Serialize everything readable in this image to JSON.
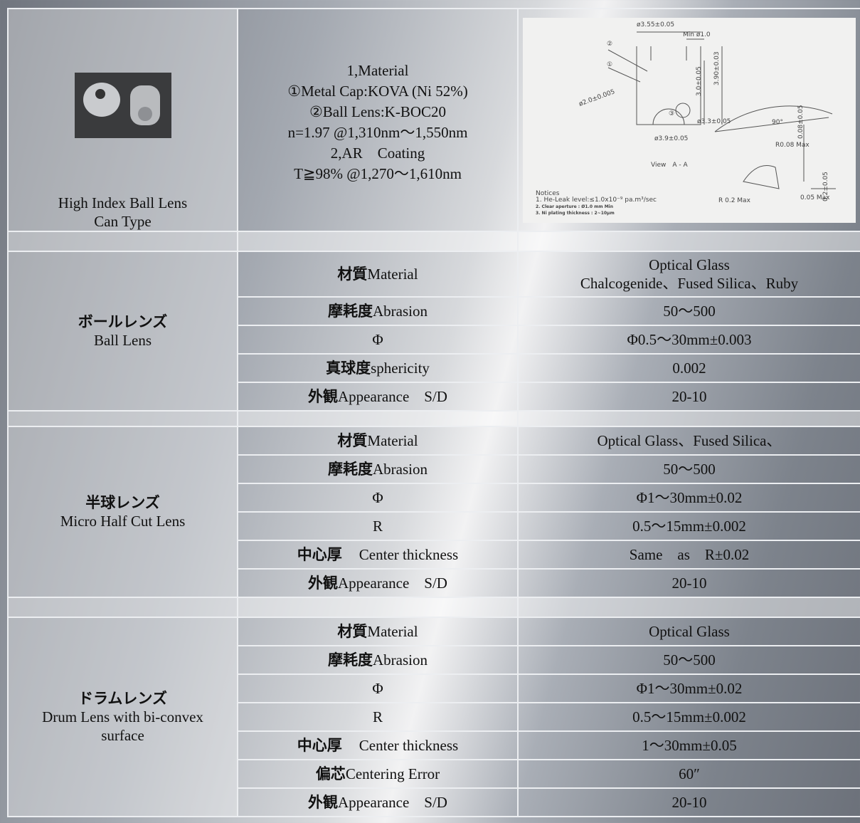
{
  "header_row": {
    "product": [
      "High Index Ball Lens",
      "Can Type"
    ],
    "spec": [
      "1,Material",
      "①Metal Cap:KOVA (Ni 52%)",
      "②Ball Lens:K-BOC20",
      "n=1.97 @1,310nm～1,550nm",
      "2,AR　Coating",
      "T≧98% @1,270～1,610nm"
    ],
    "drawing": {
      "labels": [
        "ø3.55±0.05",
        "Min ø1.0",
        "②",
        "①",
        "③",
        "ø2.0±0.005",
        "3.0±0.05",
        "3.90±0.03",
        "ø3.3±0.05",
        "ø3.9±0.05",
        "90°",
        "R0.08 Max",
        "0.08±0.05",
        "View　A - A",
        "R 0.2 Max",
        "0.05 Max",
        "0.2±0.05"
      ],
      "notices": [
        "Notices",
        "1. He-Leak level:≤1.0x10⁻⁹ pa.m³/sec",
        "2. Clear aperture : Ø1.0 mm Min",
        "3. Ni plating thickness : 2~10μm"
      ]
    }
  },
  "sections": [
    {
      "name_ja": "ボールレンズ",
      "name_en": "Ball Lens",
      "rows": [
        {
          "label_ja": "材質",
          "label_en": "Material",
          "value": [
            "Optical Glass",
            "Chalcogenide、Fused Silica、Ruby"
          ]
        },
        {
          "label_ja": "摩耗度",
          "label_en": "Abrasion",
          "value": [
            "50～500"
          ]
        },
        {
          "label_en": "Φ",
          "value": [
            "Φ0.5～30mm±0.003"
          ]
        },
        {
          "label_ja": "真球度",
          "label_en": "sphericity",
          "value": [
            "0.002"
          ]
        },
        {
          "label_ja": "外観",
          "label_en": "Appearance　S/D",
          "value": [
            "20-10"
          ]
        }
      ]
    },
    {
      "name_ja": "半球レンズ",
      "name_en": "Micro Half Cut Lens",
      "rows": [
        {
          "label_ja": "材質",
          "label_en": "Material",
          "value": [
            "Optical Glass、Fused Silica、"
          ]
        },
        {
          "label_ja": "摩耗度",
          "label_en": "Abrasion",
          "value": [
            "50～500"
          ]
        },
        {
          "label_en": "Φ",
          "value": [
            "Φ1～30mm±0.02"
          ]
        },
        {
          "label_en": "R",
          "value": [
            "0.5～15mm±0.002"
          ]
        },
        {
          "label_ja": "中心厚",
          "label_en": "Center thickness",
          "value": [
            "Same　as　R±0.02"
          ]
        },
        {
          "label_ja": "外観",
          "label_en": "Appearance　S/D",
          "value": [
            "20-10"
          ]
        }
      ]
    },
    {
      "name_ja": "ドラムレンズ",
      "name_en": "Drum Lens with bi-convex surface",
      "rows": [
        {
          "label_ja": "材質",
          "label_en": "Material",
          "value": [
            "Optical Glass"
          ]
        },
        {
          "label_ja": "摩耗度",
          "label_en": "Abrasion",
          "value": [
            "50～500"
          ]
        },
        {
          "label_en": "Φ",
          "value": [
            "Φ1～30mm±0.02"
          ]
        },
        {
          "label_en": "R",
          "value": [
            "0.5～15mm±0.002"
          ]
        },
        {
          "label_ja": "中心厚",
          "label_en": "Center thickness",
          "value": [
            "1～30mm±0.05"
          ]
        },
        {
          "label_ja": "偏芯",
          "label_en": "Centering Error",
          "value": [
            "60″"
          ]
        },
        {
          "label_ja": "外観",
          "label_en": "Appearance　S/D",
          "value": [
            "20-10"
          ]
        }
      ]
    }
  ]
}
